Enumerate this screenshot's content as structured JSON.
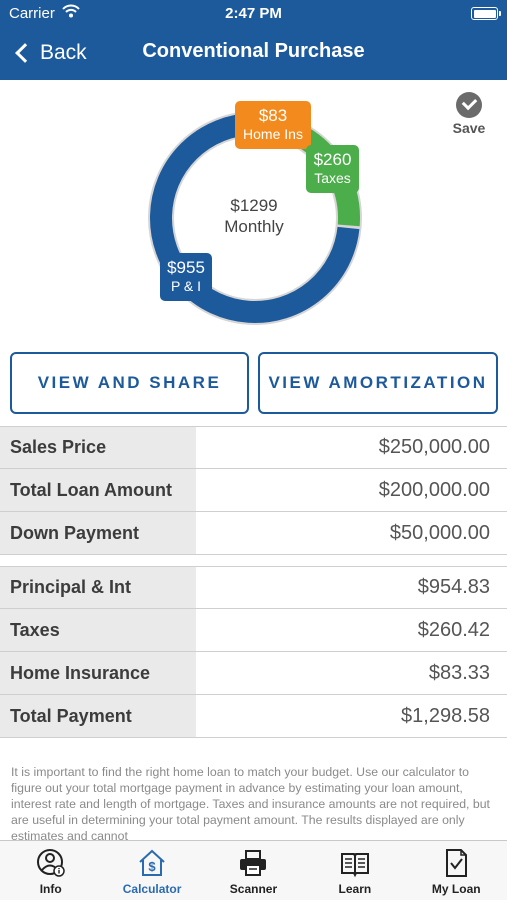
{
  "status_bar": {
    "carrier": "Carrier",
    "time": "2:47 PM"
  },
  "nav": {
    "back_label": "Back",
    "title": "Conventional Purchase"
  },
  "save": {
    "label": "Save"
  },
  "donut_chart": {
    "center_amount": "$1299",
    "center_label": "Monthly",
    "segments": [
      {
        "name": "Home Ins",
        "amount_label": "$83",
        "value": 83.33,
        "color": "#f28a1e"
      },
      {
        "name": "Taxes",
        "amount_label": "$260",
        "value": 260.42,
        "color": "#4cad4b"
      },
      {
        "name": "P & I",
        "amount_label": "$955",
        "value": 954.83,
        "color": "#1d5a9c"
      }
    ]
  },
  "buttons": {
    "view_share": "VIEW AND SHARE",
    "view_amortization": "VIEW AMORTIZATION"
  },
  "loan_rows": [
    {
      "label": "Sales Price",
      "value": "$250,000.00"
    },
    {
      "label": "Total Loan Amount",
      "value": "$200,000.00"
    },
    {
      "label": "Down Payment",
      "value": "$50,000.00"
    }
  ],
  "payment_rows": [
    {
      "label": "Principal & Int",
      "value": "$954.83"
    },
    {
      "label": "Taxes",
      "value": "$260.42"
    },
    {
      "label": "Home Insurance",
      "value": "$83.33"
    },
    {
      "label": "Total Payment",
      "value": "$1,298.58"
    }
  ],
  "disclaimer": "It is important to find the right home loan to match your budget. Use our calculator to figure out your total mortgage payment in advance by estimating your loan amount, interest rate and length of mortgage. Taxes and insurance amounts are not required, but are useful in determining your total payment amount.  The results displayed are only estimates and cannot",
  "tabs": [
    {
      "label": "Info",
      "icon": "info-person-icon",
      "active": false
    },
    {
      "label": "Calculator",
      "icon": "house-dollar-icon",
      "active": true
    },
    {
      "label": "Scanner",
      "icon": "printer-icon",
      "active": false
    },
    {
      "label": "Learn",
      "icon": "book-icon",
      "active": false
    },
    {
      "label": "My Loan",
      "icon": "document-check-icon",
      "active": false
    }
  ]
}
